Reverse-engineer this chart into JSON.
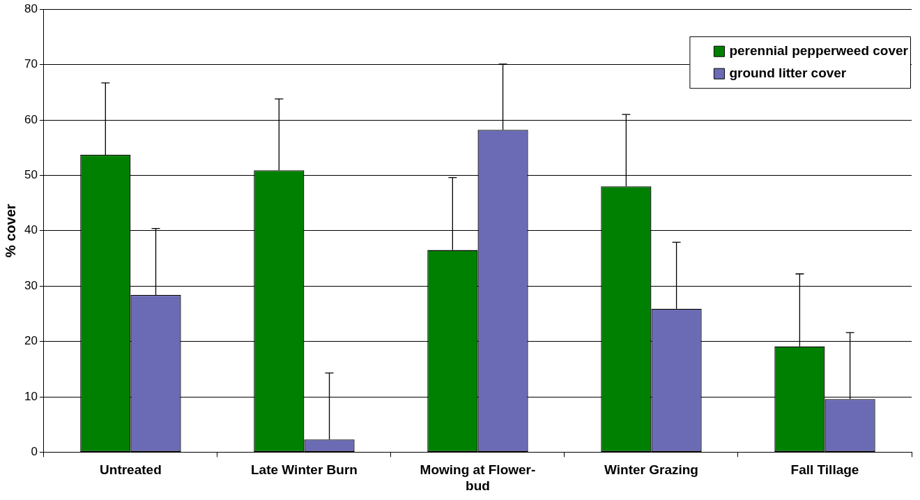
{
  "chart_data": {
    "type": "bar",
    "ylabel": "% cover",
    "categories": [
      "Untreated",
      "Late Winter Burn",
      "Mowing at Flower-bud",
      "Winter Grazing",
      "Fall Tillage"
    ],
    "series": [
      {
        "name": "perennial pepperweed cover",
        "color": "#008000",
        "values": [
          53.7,
          50.9,
          36.5,
          48.0,
          19.1
        ],
        "errors": [
          [
            53.7,
            66.7
          ],
          [
            50.9,
            63.8
          ],
          [
            36.5,
            49.6
          ],
          [
            48.0,
            61.0
          ],
          [
            19.1,
            32.2
          ]
        ]
      },
      {
        "name": "ground litter cover",
        "color": "#6b6bb5",
        "values": [
          28.4,
          2.3,
          58.2,
          25.9,
          9.6
        ],
        "errors": [
          [
            28.4,
            40.4
          ],
          [
            2.3,
            14.3
          ],
          [
            58.2,
            70.1
          ],
          [
            25.9,
            37.9
          ],
          [
            9.6,
            21.6
          ]
        ]
      }
    ],
    "ylim": [
      0,
      80
    ],
    "yticks": [
      0,
      10,
      20,
      30,
      40,
      50,
      60,
      70,
      80
    ],
    "grid": "y",
    "legend": "top right"
  }
}
